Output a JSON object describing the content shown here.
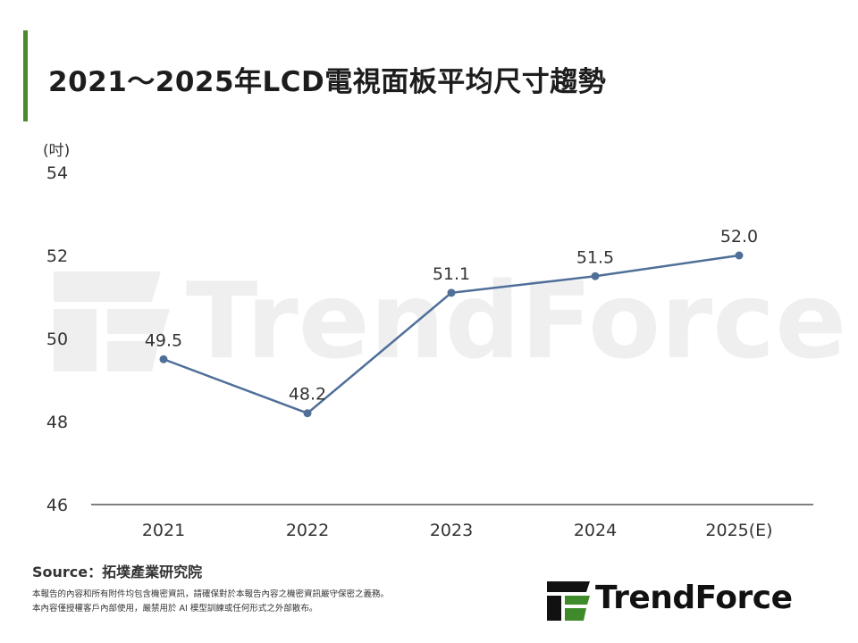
{
  "title": "2021～2025年LCD電視面板平均尺寸趨勢",
  "source": "Source：拓墣產業研究院",
  "disclaimer": [
    "本報告的內容和所有附件均包含機密資訊，請確保對於本報告內容之機密資訊嚴守保密之義務。",
    "本內容僅授權客戶內部使用，嚴禁用於 AI 模型訓練或任何形式之外部散布。"
  ],
  "logo_text": "TrendForce",
  "watermark_text": "TrendForce",
  "colors": {
    "accent_bar": "#4a8a2c",
    "line": "#4f6f98",
    "logo_green": "#3f8a2a",
    "logo_black": "#111111"
  },
  "chart_data": {
    "type": "line",
    "title": "2021～2025年LCD電視面板平均尺寸趨勢",
    "ylabel": "(吋)",
    "xlabel": "",
    "categories": [
      "2021",
      "2022",
      "2023",
      "2024",
      "2025(E)"
    ],
    "values": [
      49.5,
      48.2,
      51.1,
      51.5,
      52.0
    ],
    "value_labels": [
      "49.5",
      "48.2",
      "51.1",
      "51.5",
      "52.0"
    ],
    "ylim": [
      46,
      54
    ],
    "yticks": [
      "46",
      "48",
      "50",
      "52",
      "54"
    ],
    "grid": false,
    "legend": "none"
  }
}
